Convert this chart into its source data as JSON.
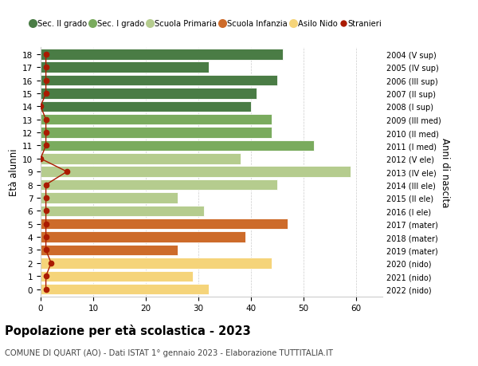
{
  "ages": [
    18,
    17,
    16,
    15,
    14,
    13,
    12,
    11,
    10,
    9,
    8,
    7,
    6,
    5,
    4,
    3,
    2,
    1,
    0
  ],
  "years": [
    "2004 (V sup)",
    "2005 (IV sup)",
    "2006 (III sup)",
    "2007 (II sup)",
    "2008 (I sup)",
    "2009 (III med)",
    "2010 (II med)",
    "2011 (I med)",
    "2012 (V ele)",
    "2013 (IV ele)",
    "2014 (III ele)",
    "2015 (II ele)",
    "2016 (I ele)",
    "2017 (mater)",
    "2018 (mater)",
    "2019 (mater)",
    "2020 (nido)",
    "2021 (nido)",
    "2022 (nido)"
  ],
  "values": [
    46,
    32,
    45,
    41,
    40,
    44,
    44,
    52,
    38,
    59,
    45,
    26,
    31,
    47,
    39,
    26,
    44,
    29,
    32
  ],
  "bar_colors": [
    "#4a7c45",
    "#4a7c45",
    "#4a7c45",
    "#4a7c45",
    "#4a7c45",
    "#7aab5e",
    "#7aab5e",
    "#7aab5e",
    "#b5cc8e",
    "#b5cc8e",
    "#b5cc8e",
    "#b5cc8e",
    "#b5cc8e",
    "#cd6b2a",
    "#cd6b2a",
    "#cd6b2a",
    "#f5d47a",
    "#f5d47a",
    "#f5d47a"
  ],
  "legend_labels": [
    "Sec. II grado",
    "Sec. I grado",
    "Scuola Primaria",
    "Scuola Infanzia",
    "Asilo Nido",
    "Stranieri"
  ],
  "legend_colors": [
    "#4a7c45",
    "#7aab5e",
    "#b5cc8e",
    "#cd6b2a",
    "#f5d47a",
    "#aa1a00"
  ],
  "title": "Popolazione per età scolastica - 2023",
  "subtitle": "COMUNE DI QUART (AO) - Dati ISTAT 1° gennaio 2023 - Elaborazione TUTTITALIA.IT",
  "ylabel": "Età alunni",
  "right_label": "Anni di nascita",
  "xlim": [
    0,
    65
  ],
  "xticks": [
    0,
    10,
    20,
    30,
    40,
    50,
    60
  ],
  "background_color": "#ffffff",
  "stranieri_color": "#aa1a00",
  "stranieri_x": [
    1,
    1,
    1,
    1,
    0,
    1,
    1,
    1,
    0,
    5,
    1,
    1,
    1,
    1,
    1,
    1,
    2,
    1,
    1
  ]
}
